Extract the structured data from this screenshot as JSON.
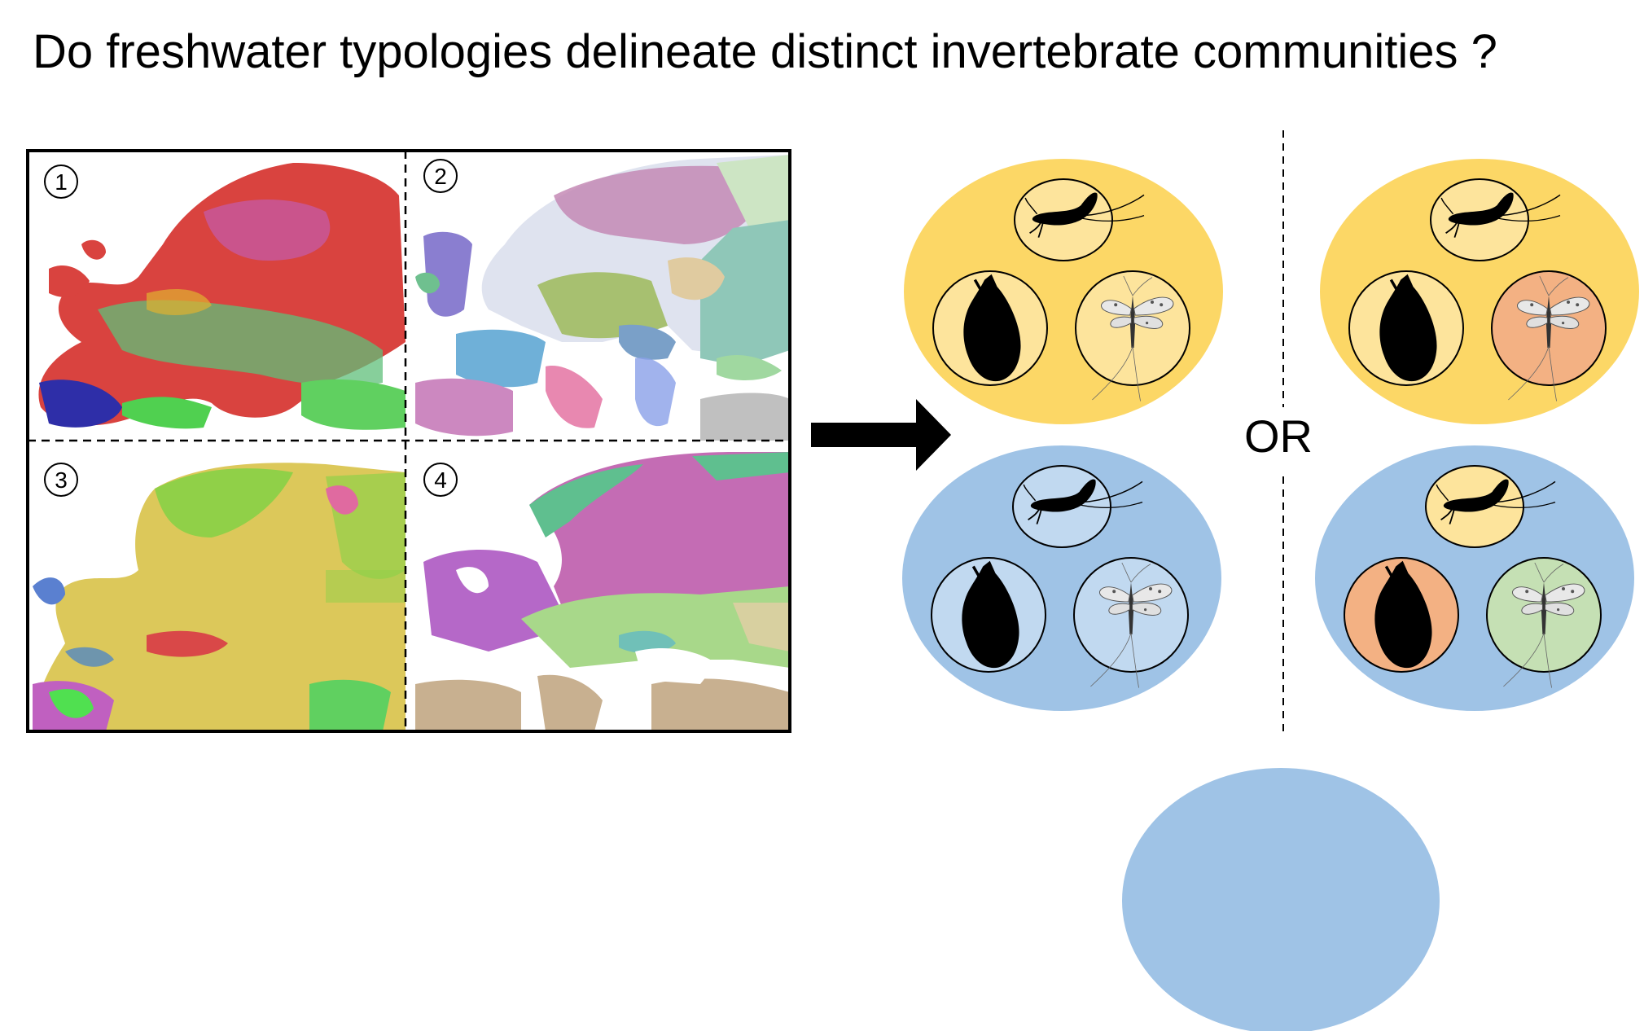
{
  "title": "Do freshwater typologies delineate distinct invertebrate communities ?",
  "panels": [
    {
      "number": "1",
      "map_style": "pixel classification, many colours"
    },
    {
      "number": "2",
      "map_style": "overlapping translucent regions"
    },
    {
      "number": "3",
      "map_style": "pixel classification, yellow/green dominant"
    },
    {
      "number": "4",
      "map_style": "large ecoregion polygons"
    }
  ],
  "separator_label": "OR",
  "colors": {
    "group_yellow": "#fcd766",
    "group_blue": "#9fc3e6",
    "inner_yellow": "#fde49c",
    "inner_blue": "#c1d9f0",
    "inner_orange": "#f3b183",
    "inner_green": "#c5e0b4",
    "silhouette": "#000000"
  },
  "scenarios": [
    {
      "name_hint": "distinct communities",
      "groups": [
        {
          "fill": "group_yellow",
          "taxa": [
            {
              "icon": "mayfly-icon",
              "fill": "inner_yellow"
            },
            {
              "icon": "snail-icon",
              "fill": "inner_yellow"
            },
            {
              "icon": "winged-insect-icon",
              "fill": "inner_yellow"
            }
          ]
        },
        {
          "fill": "group_blue",
          "taxa": [
            {
              "icon": "mayfly-icon",
              "fill": "inner_blue"
            },
            {
              "icon": "snail-icon",
              "fill": "inner_blue"
            },
            {
              "icon": "winged-insect-icon",
              "fill": "inner_blue"
            }
          ]
        }
      ]
    },
    {
      "name_hint": "mixed communities",
      "groups": [
        {
          "fill": "group_yellow",
          "taxa": [
            {
              "icon": "mayfly-icon",
              "fill": "inner_yellow"
            },
            {
              "icon": "snail-icon",
              "fill": "inner_yellow"
            },
            {
              "icon": "winged-insect-icon",
              "fill": "inner_orange"
            }
          ]
        },
        {
          "fill": "group_blue",
          "taxa": [
            {
              "icon": "mayfly-icon",
              "fill": "inner_yellow"
            },
            {
              "icon": "snail-icon",
              "fill": "inner_orange"
            },
            {
              "icon": "winged-insect-icon",
              "fill": "inner_green"
            }
          ]
        }
      ]
    }
  ],
  "extra_shape": {
    "fill": "group_blue"
  }
}
